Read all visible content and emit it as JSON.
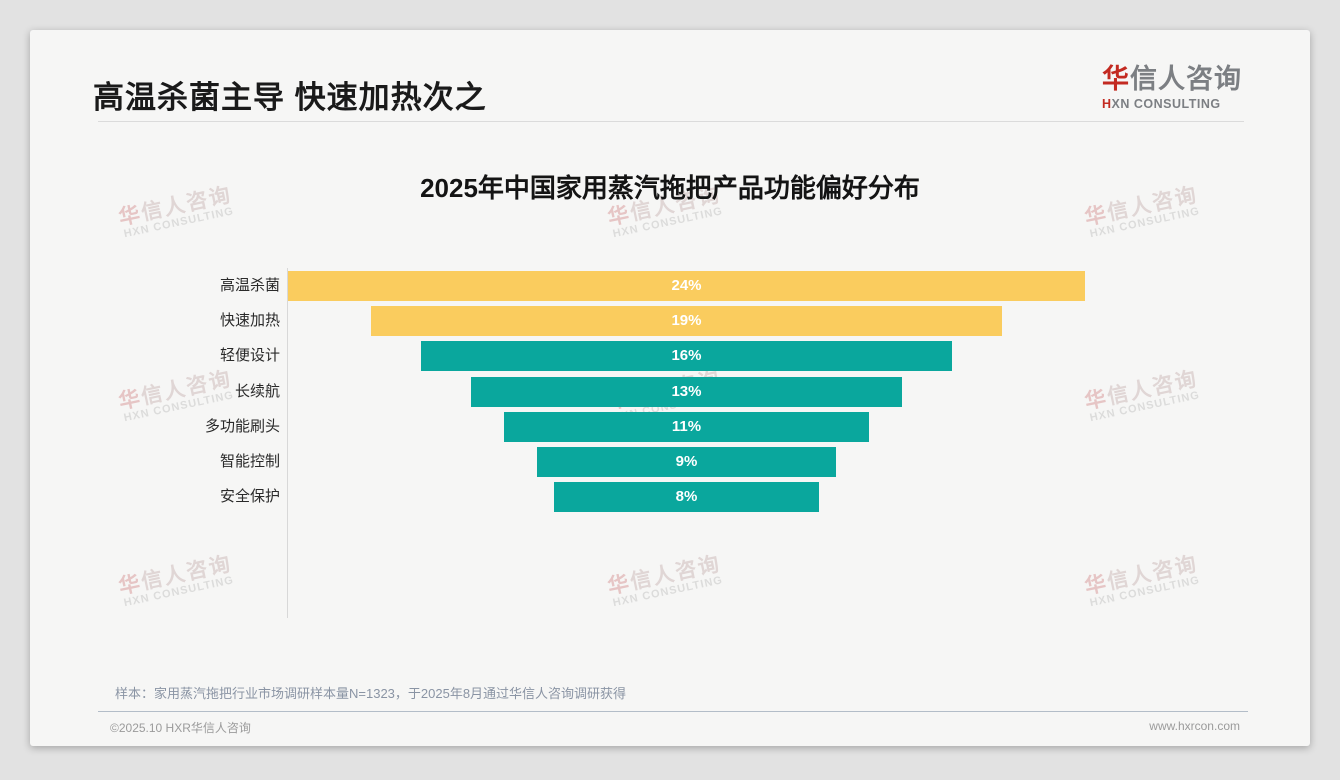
{
  "page": {
    "title": "高温杀菌主导 快速加热次之",
    "logo": {
      "zh_first": "华",
      "zh_rest": "信人咨询",
      "en_first": "H",
      "en_rest": "XN CONSULTING"
    },
    "watermark": {
      "zh_first": "华",
      "zh_rest": "信人咨询",
      "en": "HXN CONSULTING"
    },
    "footer": {
      "sample_note": "样本：家用蒸汽拖把行业市场调研样本量N=1323，于2025年8月通过华信人咨询调研获得",
      "copyright": "©2025.10 HXR华信人咨询",
      "website": "www.hxrcon.com"
    }
  },
  "chart_data": {
    "type": "bar",
    "orientation": "horizontal",
    "layout": "centered-funnel",
    "title": "2025年中国家用蒸汽拖把产品功能偏好分布",
    "categories": [
      "高温杀菌",
      "快速加热",
      "轻便设计",
      "长续航",
      "多功能刷头",
      "智能控制",
      "安全保护"
    ],
    "values": [
      24,
      19,
      16,
      13,
      11,
      9,
      8
    ],
    "value_labels": [
      "24%",
      "19%",
      "16%",
      "13%",
      "11%",
      "9%",
      "8%"
    ],
    "unit": "%",
    "xlim": [
      0,
      24
    ],
    "value_label_position": "center",
    "grid": false,
    "legend": false,
    "bar_colors": [
      "#facc5e",
      "#facc5e",
      "#0aa79d",
      "#0aa79d",
      "#0aa79d",
      "#0aa79d",
      "#0aa79d"
    ],
    "highlight_color": "#facc5e",
    "base_color": "#0aa79d",
    "value_text_color": "#ffffff"
  }
}
